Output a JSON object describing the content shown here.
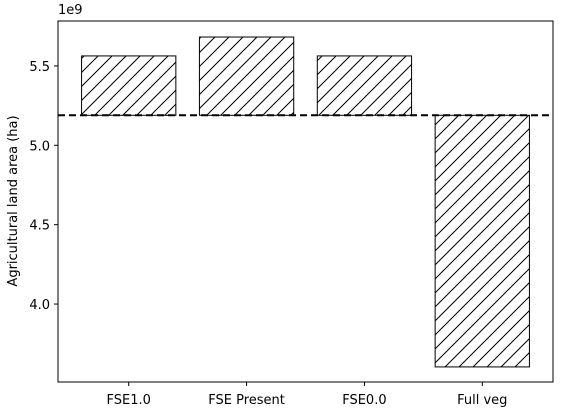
{
  "chart_data": {
    "type": "bar",
    "y_label": "Agricultural land area (ha)",
    "y_offset_label": "1e9",
    "categories": [
      "FSE1.0",
      "FSE Present",
      "FSE0.0",
      "Full veg"
    ],
    "values": [
      5563000000,
      5682000000,
      5563000000,
      3604000000
    ],
    "baseline": 5189000000,
    "color": "#ffffff",
    "edge_color": "#000000",
    "hatch": "/",
    "ylim": [
      3509000000,
      5783000000
    ],
    "yticks": [
      {
        "value": 4000000000,
        "label": "4.0"
      },
      {
        "value": 4500000000,
        "label": "4.5"
      },
      {
        "value": 5000000000,
        "label": "5.0"
      },
      {
        "value": 5500000000,
        "label": "5.5"
      }
    ],
    "grid": false
  }
}
